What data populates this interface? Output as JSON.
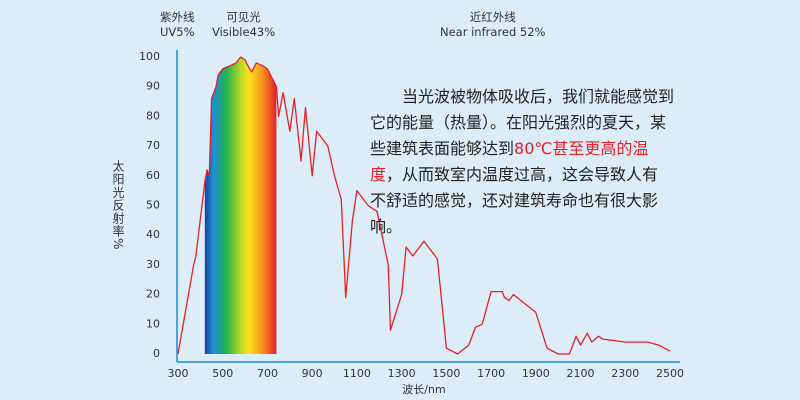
{
  "chart_data": {
    "type": "line",
    "top_labels": [
      {
        "zh": "紫外线",
        "en": "UV5%"
      },
      {
        "zh": "可见光",
        "en": "Visible43%"
      },
      {
        "zh": "近红外线",
        "en": "Near infrared 52%"
      }
    ],
    "paragraph": [
      "当光波被物体吸收后，我们就能感觉到它的能量（热量）。在阳光强烈的夏天，某些建筑表面能够达到",
      "80℃甚至更高的温度",
      "，从而致室内温度过高，这会导致人有不舒适的感觉，还对建筑寿命也有很大影响。"
    ],
    "ylabel": "太阳光反射率%",
    "xlabel": "波长/nm",
    "x": [
      300,
      370,
      380,
      420,
      430,
      440,
      450,
      470,
      480,
      500,
      530,
      560,
      580,
      600,
      620,
      630,
      650,
      680,
      700,
      740,
      750,
      770,
      800,
      820,
      850,
      870,
      900,
      920,
      950,
      970,
      1000,
      1030,
      1050,
      1080,
      1100,
      1150,
      1190,
      1240,
      1250,
      1300,
      1320,
      1350,
      1400,
      1460,
      1500,
      1550,
      1600,
      1630,
      1660,
      1700,
      1750,
      1760,
      1780,
      1800,
      1900,
      1950,
      2000,
      2050,
      2080,
      2100,
      2130,
      2150,
      2180,
      2200,
      2300,
      2400,
      2450,
      2500
    ],
    "series": [
      {
        "color": "#e4202a",
        "values": [
          0,
          30,
          33,
          58,
          62,
          60,
          86,
          90,
          94,
          96,
          97,
          98,
          100,
          99,
          96,
          95,
          98,
          97,
          96,
          90,
          80,
          88,
          75,
          86,
          65,
          83,
          60,
          75,
          72,
          70,
          60,
          52,
          19,
          45,
          55,
          50,
          48,
          30,
          8,
          20,
          36,
          33,
          38,
          32,
          2,
          0,
          3,
          9,
          10,
          21,
          21,
          19,
          18,
          20,
          14,
          2,
          0,
          0,
          6,
          3,
          7,
          4,
          6,
          5,
          4,
          4,
          3,
          1
        ]
      }
    ],
    "visible_band": [
      420,
      740
    ],
    "xlim": [
      300,
      2500
    ],
    "xticks": [
      300,
      500,
      700,
      900,
      1100,
      1300,
      1500,
      1700,
      1900,
      2100,
      2300,
      2500
    ],
    "ylim": [
      0,
      100
    ],
    "yticks": [
      0,
      10,
      20,
      30,
      40,
      50,
      60,
      70,
      80,
      90,
      100
    ]
  }
}
